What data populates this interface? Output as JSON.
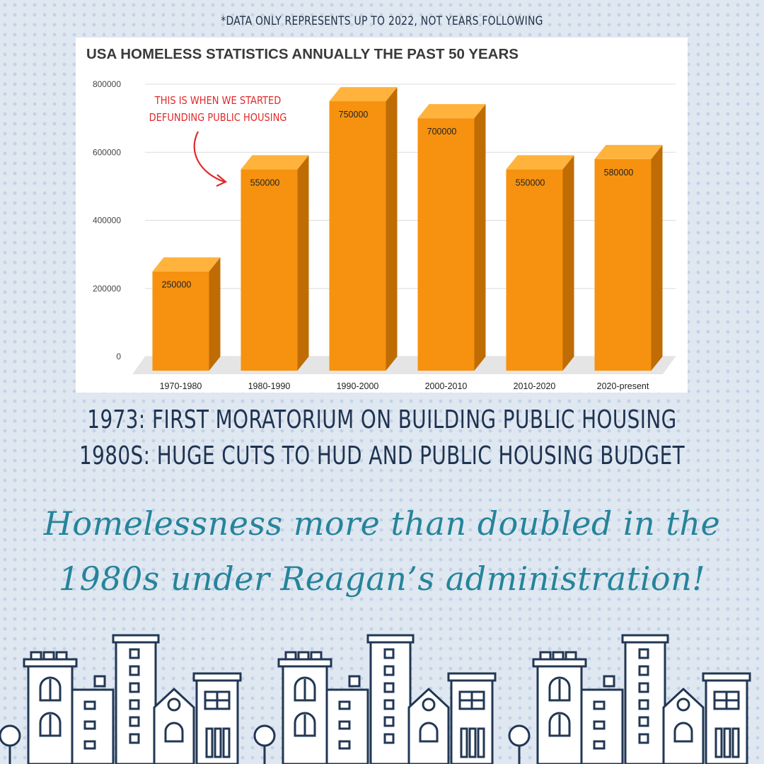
{
  "note": "*DATA ONLY REPRESENTS UP TO 2022, NOT YEARS FOLLOWING",
  "colors": {
    "bar_front": "#f6920f",
    "bar_side": "#bf6c05",
    "bar_top": "#ffb33c",
    "annotation": "#e02a2a",
    "headline": "#25849a",
    "facts": "#1e3350",
    "city_line": "#213754"
  },
  "chart_data": {
    "type": "bar",
    "title": "USA HOMELESS STATISTICS ANNUALLY THE PAST 50 YEARS",
    "categories": [
      "1970-1980",
      "1980-1990",
      "1990-2000",
      "2000-2010",
      "2010-2020",
      "2020-present"
    ],
    "values": [
      250000,
      550000,
      750000,
      700000,
      550000,
      580000
    ],
    "data_labels": [
      "250000",
      "550000",
      "750000",
      "700000",
      "550000",
      "580000"
    ],
    "yticks": [
      "800000",
      "600000",
      "400000",
      "200000",
      "0"
    ],
    "ylim": [
      0,
      800000
    ],
    "xlabel": "",
    "ylabel": "",
    "annotation": {
      "line1": "THIS IS WHEN WE STARTED",
      "line2": "DEFUNDING PUBLIC HOUSING",
      "target_category": "1980-1990"
    }
  },
  "facts": {
    "line1": "1973: FIRST MORATORIUM ON BUILDING PUBLIC HOUSING",
    "line2": "1980S: HUGE CUTS TO HUD AND PUBLIC HOUSING BUDGET"
  },
  "headline": {
    "line1": "Homelessness more than doubled in the",
    "line2": "1980s under Reagan’s administration!"
  }
}
